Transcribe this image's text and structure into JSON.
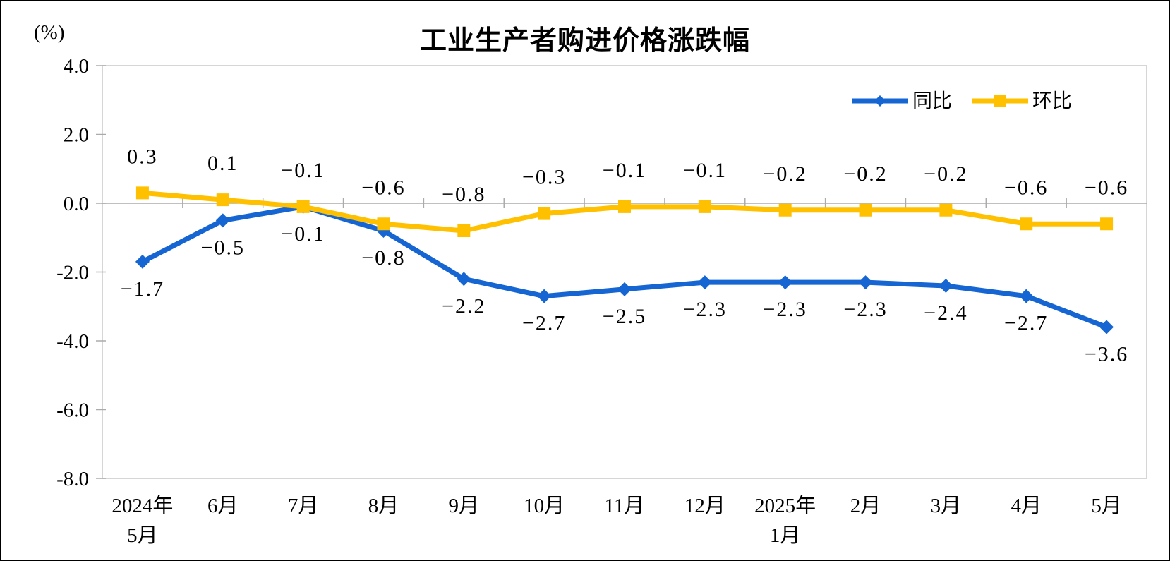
{
  "chart_data": {
    "type": "line",
    "title": "工业生产者购进价格涨跌幅",
    "ylabel": "(%)",
    "xlabel": "",
    "grid": false,
    "legend_position": "top-right",
    "categories": [
      [
        "2024年",
        "5月"
      ],
      [
        "6月"
      ],
      [
        "7月"
      ],
      [
        "8月"
      ],
      [
        "9月"
      ],
      [
        "10月"
      ],
      [
        "11月"
      ],
      [
        "12月"
      ],
      [
        "2025年",
        "1月"
      ],
      [
        "2月"
      ],
      [
        "3月"
      ],
      [
        "4月"
      ],
      [
        "5月"
      ]
    ],
    "series": [
      {
        "key": "yoy",
        "name": "同比",
        "marker": "diamond",
        "color": "#1565D2",
        "values": [
          -1.7,
          -0.5,
          -0.1,
          -0.8,
          -2.2,
          -2.7,
          -2.5,
          -2.3,
          -2.3,
          -2.3,
          -2.4,
          -2.7,
          -3.6
        ],
        "labels": [
          "−1.7",
          "−0.5",
          "−0.1",
          "−0.8",
          "−2.2",
          "−2.7",
          "−2.5",
          "−2.3",
          "−2.3",
          "−2.3",
          "−2.4",
          "−2.7",
          "−3.6"
        ],
        "label_placement": "below"
      },
      {
        "key": "mom",
        "name": "环比",
        "marker": "square",
        "color": "#FFC000",
        "values": [
          0.3,
          0.1,
          -0.1,
          -0.6,
          -0.8,
          -0.3,
          -0.1,
          -0.1,
          -0.2,
          -0.2,
          -0.2,
          -0.6,
          -0.6
        ],
        "labels": [
          "0.3",
          "0.1",
          "−0.1",
          "−0.6",
          "−0.8",
          "−0.3",
          "−0.1",
          "−0.1",
          "−0.2",
          "−0.2",
          "−0.2",
          "−0.6",
          "−0.6"
        ],
        "label_placement": "above"
      }
    ],
    "y_axis": {
      "min": -8.0,
      "max": 4.0,
      "step": 2.0,
      "tick_labels": [
        "4.0",
        "2.0",
        "0.0",
        "-2.0",
        "-4.0",
        "-6.0",
        "-8.0"
      ]
    }
  },
  "colors": {
    "axis_line": "#ABABAB",
    "plot_border": "#C9C9C9",
    "text": "#000000",
    "background": "#FFFFFF"
  }
}
